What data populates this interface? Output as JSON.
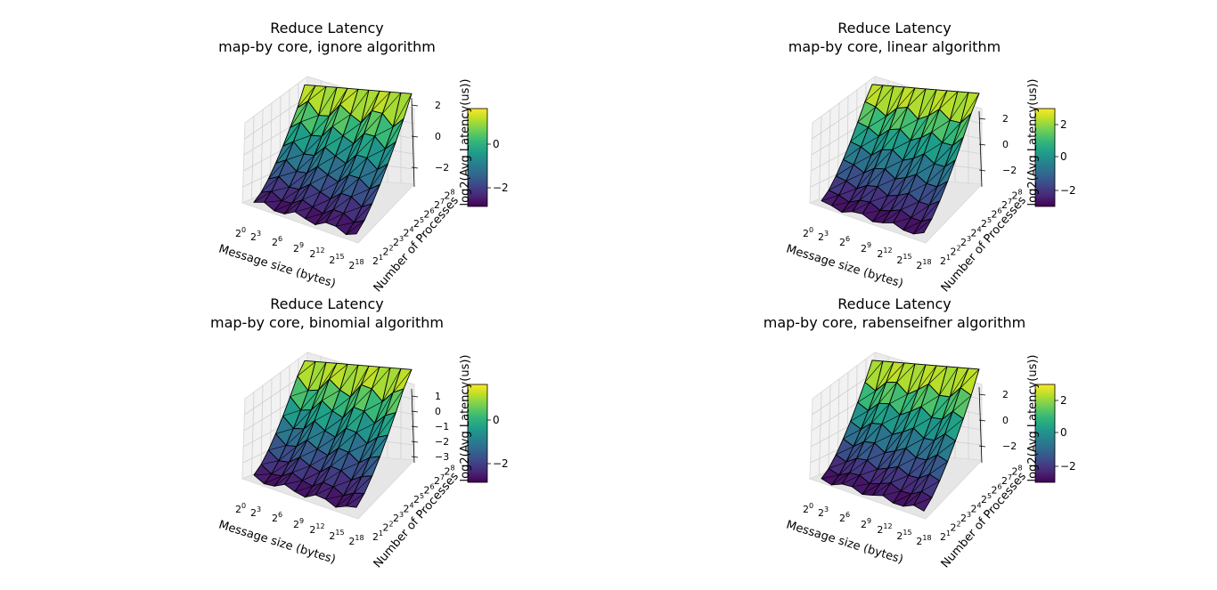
{
  "chart_data": [
    {
      "type": "surface3d",
      "title": "Reduce Latency",
      "subtitle": "map-by core, ignore algorithm",
      "xlabel": "Message size (bytes)",
      "ylabel": "Number of Processes",
      "zlabel": "log2(Avg Latency(us))",
      "x_ticks": [
        "0",
        "3",
        "6",
        "9",
        "12",
        "15",
        "18"
      ],
      "y_ticks": [
        "1",
        "2",
        "3",
        "4",
        "5",
        "6",
        "7",
        "8"
      ],
      "tick_base": "2",
      "z_ticks": [
        "2",
        "0",
        "−2"
      ],
      "zlim": [
        -3,
        2
      ],
      "colorbar_ticks": [
        "0",
        "−2"
      ],
      "colorbar_range": [
        -2.8,
        1.7
      ],
      "colormap": "viridis",
      "grid": true
    },
    {
      "type": "surface3d",
      "title": "Reduce Latency",
      "subtitle": "map-by core, linear algorithm",
      "xlabel": "Message size (bytes)",
      "ylabel": "Number of Processes",
      "zlabel": "log2(Avg Latency(us))",
      "x_ticks": [
        "0",
        "3",
        "6",
        "9",
        "12",
        "15",
        "18"
      ],
      "y_ticks": [
        "1",
        "2",
        "3",
        "4",
        "5",
        "6",
        "7",
        "8"
      ],
      "tick_base": "2",
      "z_ticks": [
        "2",
        "0",
        "−2"
      ],
      "zlim": [
        -3,
        3
      ],
      "colorbar_ticks": [
        "2",
        "0",
        "−2"
      ],
      "colorbar_range": [
        -2.8,
        2.8
      ],
      "colormap": "viridis",
      "grid": true
    },
    {
      "type": "surface3d",
      "title": "Reduce Latency",
      "subtitle": "map-by core, binomial algorithm",
      "xlabel": "Message size (bytes)",
      "ylabel": "Number of Processes",
      "zlabel": "log2(Avg Latency(us))",
      "x_ticks": [
        "0",
        "3",
        "6",
        "9",
        "12",
        "15",
        "18"
      ],
      "y_ticks": [
        "1",
        "2",
        "3",
        "4",
        "5",
        "6",
        "7",
        "8"
      ],
      "tick_base": "2",
      "z_ticks": [
        "1",
        "0",
        "−1",
        "−2",
        "−3"
      ],
      "zlim": [
        -3,
        1.5
      ],
      "colorbar_ticks": [
        "0",
        "−2"
      ],
      "colorbar_range": [
        -2.8,
        1.7
      ],
      "colormap": "viridis",
      "grid": true
    },
    {
      "type": "surface3d",
      "title": "Reduce Latency",
      "subtitle": "map-by core, rabenseifner algorithm",
      "xlabel": "Message size (bytes)",
      "ylabel": "Number of Processes",
      "zlabel": "log2(Avg Latency(us))",
      "x_ticks": [
        "0",
        "3",
        "6",
        "9",
        "12",
        "15",
        "18"
      ],
      "y_ticks": [
        "1",
        "2",
        "3",
        "4",
        "5",
        "6",
        "7",
        "8"
      ],
      "tick_base": "2",
      "z_ticks": [
        "2",
        "0",
        "−2"
      ],
      "zlim": [
        -3,
        3
      ],
      "colorbar_ticks": [
        "2",
        "0",
        "−2"
      ],
      "colorbar_range": [
        -2.8,
        2.8
      ],
      "colormap": "viridis",
      "grid": true
    }
  ]
}
